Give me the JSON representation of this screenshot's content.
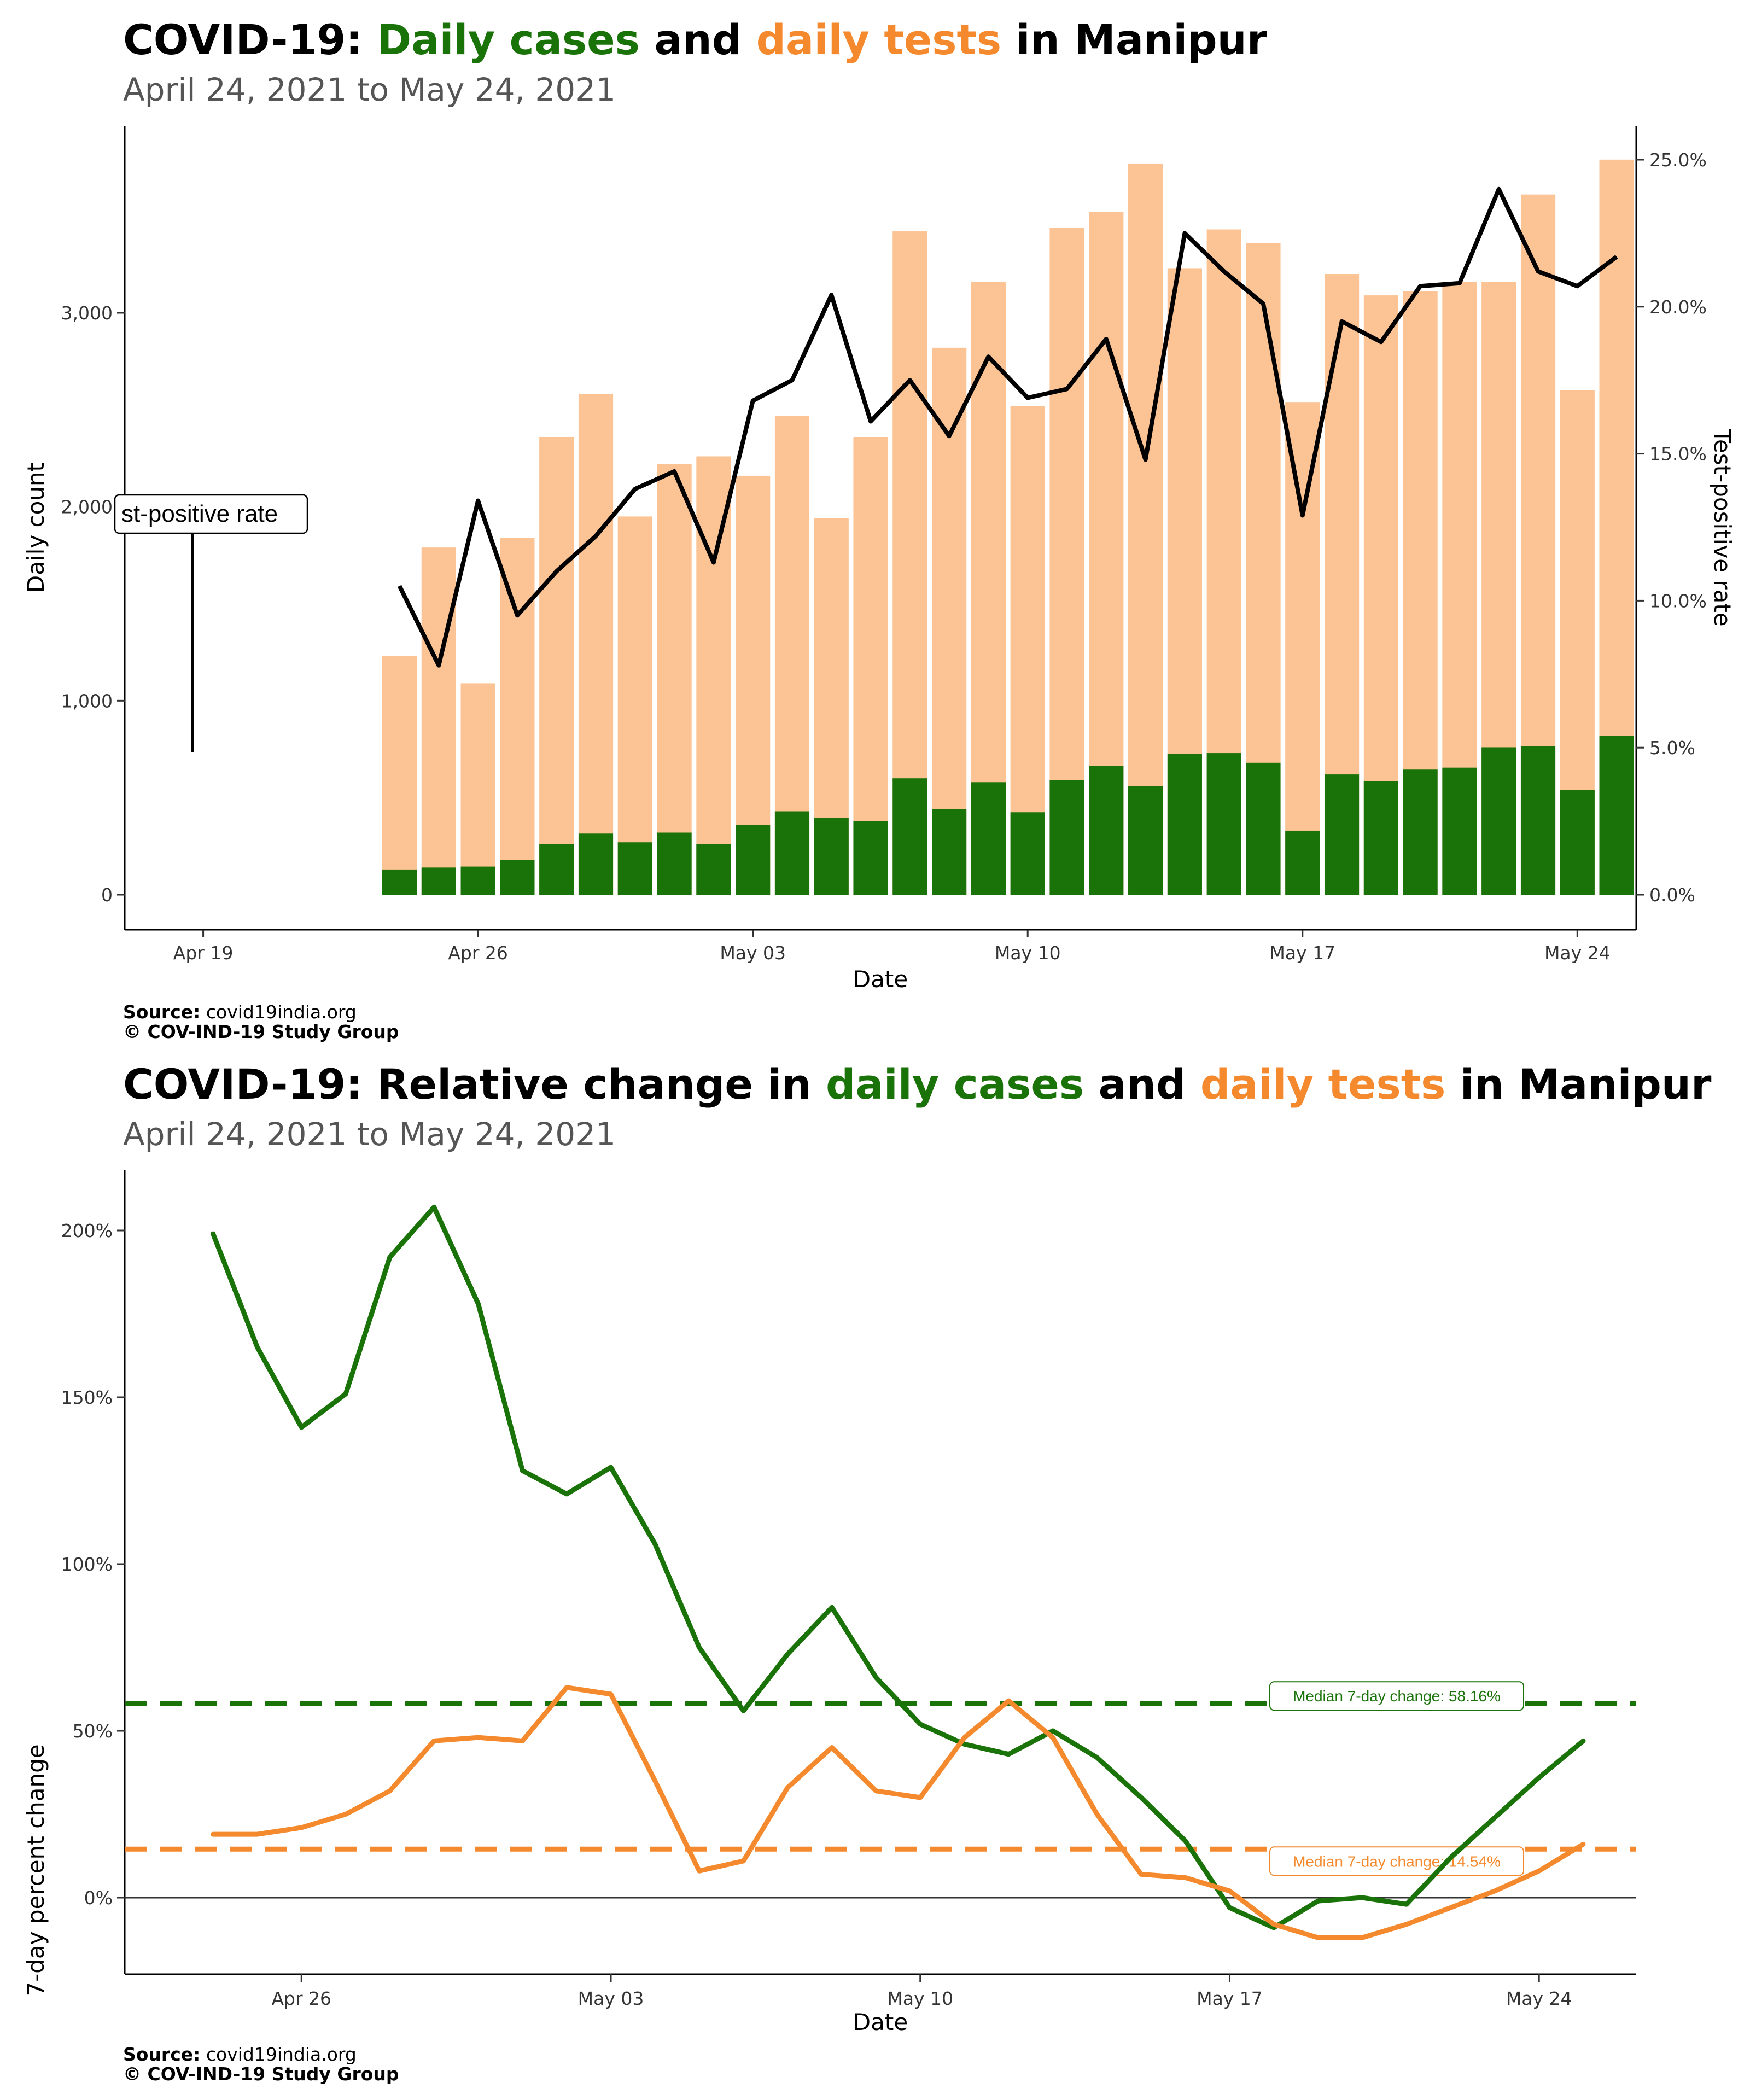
{
  "chart_data": [
    {
      "type": "bar",
      "title": {
        "prefix": "COVID-19: ",
        "cases": "Daily cases",
        "mid": " and ",
        "tests": "daily tests",
        "suffix": " in Manipur"
      },
      "subtitle": "April 24, 2021 to May 24, 2021",
      "xlabel": "Date",
      "ylabel": "Daily count",
      "ylabel_right": "Test-positive rate",
      "x_ticks": [
        "Apr 19",
        "Apr 26",
        "May 03",
        "May 10",
        "May 17",
        "May 24"
      ],
      "y_ticks": [
        "0",
        "1,000",
        "2,000",
        "3,000"
      ],
      "y2_ticks": [
        "0.0%",
        "5.0%",
        "10.0%",
        "15.0%",
        "20.0%",
        "25.0%"
      ],
      "ylim": [
        0,
        3800
      ],
      "y2lim": [
        0,
        25
      ],
      "annotation": "st-positive rate",
      "legend": "none",
      "grid": false,
      "colors": {
        "cases": "#1a7308",
        "tests": "#fcc494",
        "rate": "#000000"
      },
      "dates": [
        "2021-04-24",
        "2021-04-25",
        "2021-04-26",
        "2021-04-27",
        "2021-04-28",
        "2021-04-29",
        "2021-04-30",
        "2021-05-01",
        "2021-05-02",
        "2021-05-03",
        "2021-05-04",
        "2021-05-05",
        "2021-05-06",
        "2021-05-07",
        "2021-05-08",
        "2021-05-09",
        "2021-05-10",
        "2021-05-11",
        "2021-05-12",
        "2021-05-13",
        "2021-05-14",
        "2021-05-15",
        "2021-05-16",
        "2021-05-17",
        "2021-05-18",
        "2021-05-19",
        "2021-05-20",
        "2021-05-21",
        "2021-05-22",
        "2021-05-23",
        "2021-05-24",
        "2021-05-25"
      ],
      "series": [
        {
          "name": "Daily tests",
          "values": [
            1230,
            1790,
            1090,
            1840,
            2360,
            2580,
            1950,
            2220,
            2260,
            2160,
            2470,
            1940,
            2360,
            3420,
            2820,
            3160,
            2520,
            3440,
            3520,
            3770,
            3230,
            3430,
            3360,
            2540,
            3200,
            3090,
            3110,
            3160,
            3160,
            3610,
            2600,
            3790
          ]
        },
        {
          "name": "Daily cases",
          "values": [
            130,
            140,
            145,
            178,
            260,
            315,
            270,
            320,
            260,
            360,
            430,
            395,
            380,
            600,
            440,
            580,
            425,
            590,
            665,
            560,
            725,
            730,
            680,
            330,
            620,
            585,
            645,
            655,
            760,
            765,
            540,
            820
          ]
        },
        {
          "name": "Test-positive rate",
          "values": [
            10.5,
            7.8,
            13.4,
            9.5,
            11.0,
            12.2,
            13.8,
            14.4,
            11.3,
            16.8,
            17.5,
            20.4,
            16.1,
            17.5,
            15.6,
            18.3,
            16.9,
            17.2,
            18.9,
            14.8,
            22.5,
            21.2,
            20.1,
            12.9,
            19.5,
            18.8,
            20.7,
            20.8,
            24.0,
            21.2,
            20.7,
            21.7
          ]
        }
      ],
      "source_label": "Source:",
      "source_value": "covid19india.org",
      "copyright": "© COV-IND-19 Study Group"
    },
    {
      "type": "line",
      "title": {
        "prefix": "COVID-19: Relative change in ",
        "cases": "daily cases",
        "mid": " and ",
        "tests": "daily tests",
        "suffix": " in Manipur"
      },
      "subtitle": "April 24, 2021 to May 24, 2021",
      "xlabel": "Date",
      "ylabel": "7-day percent change",
      "x_ticks": [
        "Apr 26",
        "May 03",
        "May 10",
        "May 17",
        "May 24"
      ],
      "y_ticks": [
        "0%",
        "50%",
        "100%",
        "150%",
        "200%"
      ],
      "ylim": [
        -20,
        220
      ],
      "legend": "none",
      "grid": false,
      "colors": {
        "cases": "#1a7308",
        "tests": "#f5892d"
      },
      "x": [
        "2021-04-24",
        "2021-04-25",
        "2021-04-26",
        "2021-04-27",
        "2021-04-28",
        "2021-04-29",
        "2021-04-30",
        "2021-05-01",
        "2021-05-02",
        "2021-05-03",
        "2021-05-04",
        "2021-05-05",
        "2021-05-06",
        "2021-05-07",
        "2021-05-08",
        "2021-05-09",
        "2021-05-10",
        "2021-05-11",
        "2021-05-12",
        "2021-05-13",
        "2021-05-14",
        "2021-05-15",
        "2021-05-16",
        "2021-05-17",
        "2021-05-18",
        "2021-05-19",
        "2021-05-20",
        "2021-05-21",
        "2021-05-22",
        "2021-05-23",
        "2021-05-24",
        "2021-05-25"
      ],
      "series": [
        {
          "name": "Daily cases",
          "values": [
            199,
            165,
            141,
            151,
            192,
            207,
            178,
            128,
            121,
            129,
            106,
            75,
            56,
            73,
            87,
            66,
            52,
            46,
            43,
            50,
            42,
            30,
            17,
            -3,
            -9,
            -1,
            0,
            -2,
            12,
            24,
            36,
            47
          ]
        },
        {
          "name": "Daily tests",
          "values": [
            19,
            19,
            21,
            25,
            32,
            47,
            48,
            47,
            63,
            61,
            35,
            8,
            11,
            33,
            45,
            32,
            30,
            48,
            59,
            48,
            25,
            7,
            6,
            2,
            -8,
            -12,
            -12,
            -8,
            -3,
            2,
            8,
            16
          ]
        }
      ],
      "reference_lines": [
        {
          "label": "Median 7-day change: 58.16%",
          "value": 58.16
        },
        {
          "label": "Median 7-day change: 14.54%",
          "value": 14.54
        }
      ],
      "source_label": "Source:",
      "source_value": "covid19india.org",
      "copyright": "© COV-IND-19 Study Group"
    }
  ]
}
